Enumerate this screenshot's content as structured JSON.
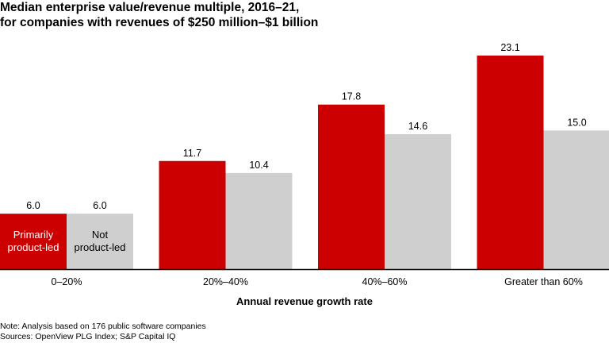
{
  "chart_data": {
    "type": "bar",
    "title": [
      "Median enterprise value/revenue multiple, 2016–21,",
      "for companies with revenues of $250 million–$1 billion"
    ],
    "xlabel": "Annual revenue growth rate",
    "ylabel": "",
    "categories": [
      "0–20%",
      "20%–40%",
      "40%–60%",
      "Greater than 60%"
    ],
    "series": [
      {
        "name": "Primarily product-led",
        "label_lines": [
          "Primarily",
          "product-led"
        ],
        "color": "#cc0000",
        "values": [
          6.0,
          11.7,
          17.8,
          23.1
        ]
      },
      {
        "name": "Not product-led",
        "label_lines": [
          "Not",
          "product-led"
        ],
        "color": "#cfcfcf",
        "values": [
          6.0,
          10.4,
          14.6,
          15.0
        ]
      }
    ],
    "ylim": [
      0,
      23.1
    ],
    "grid": false,
    "legend": "inside first bar group"
  },
  "notes": [
    "Note: Analysis based on 176 public software companies",
    "Sources: OpenView PLG Index; S&P Capital IQ"
  ]
}
